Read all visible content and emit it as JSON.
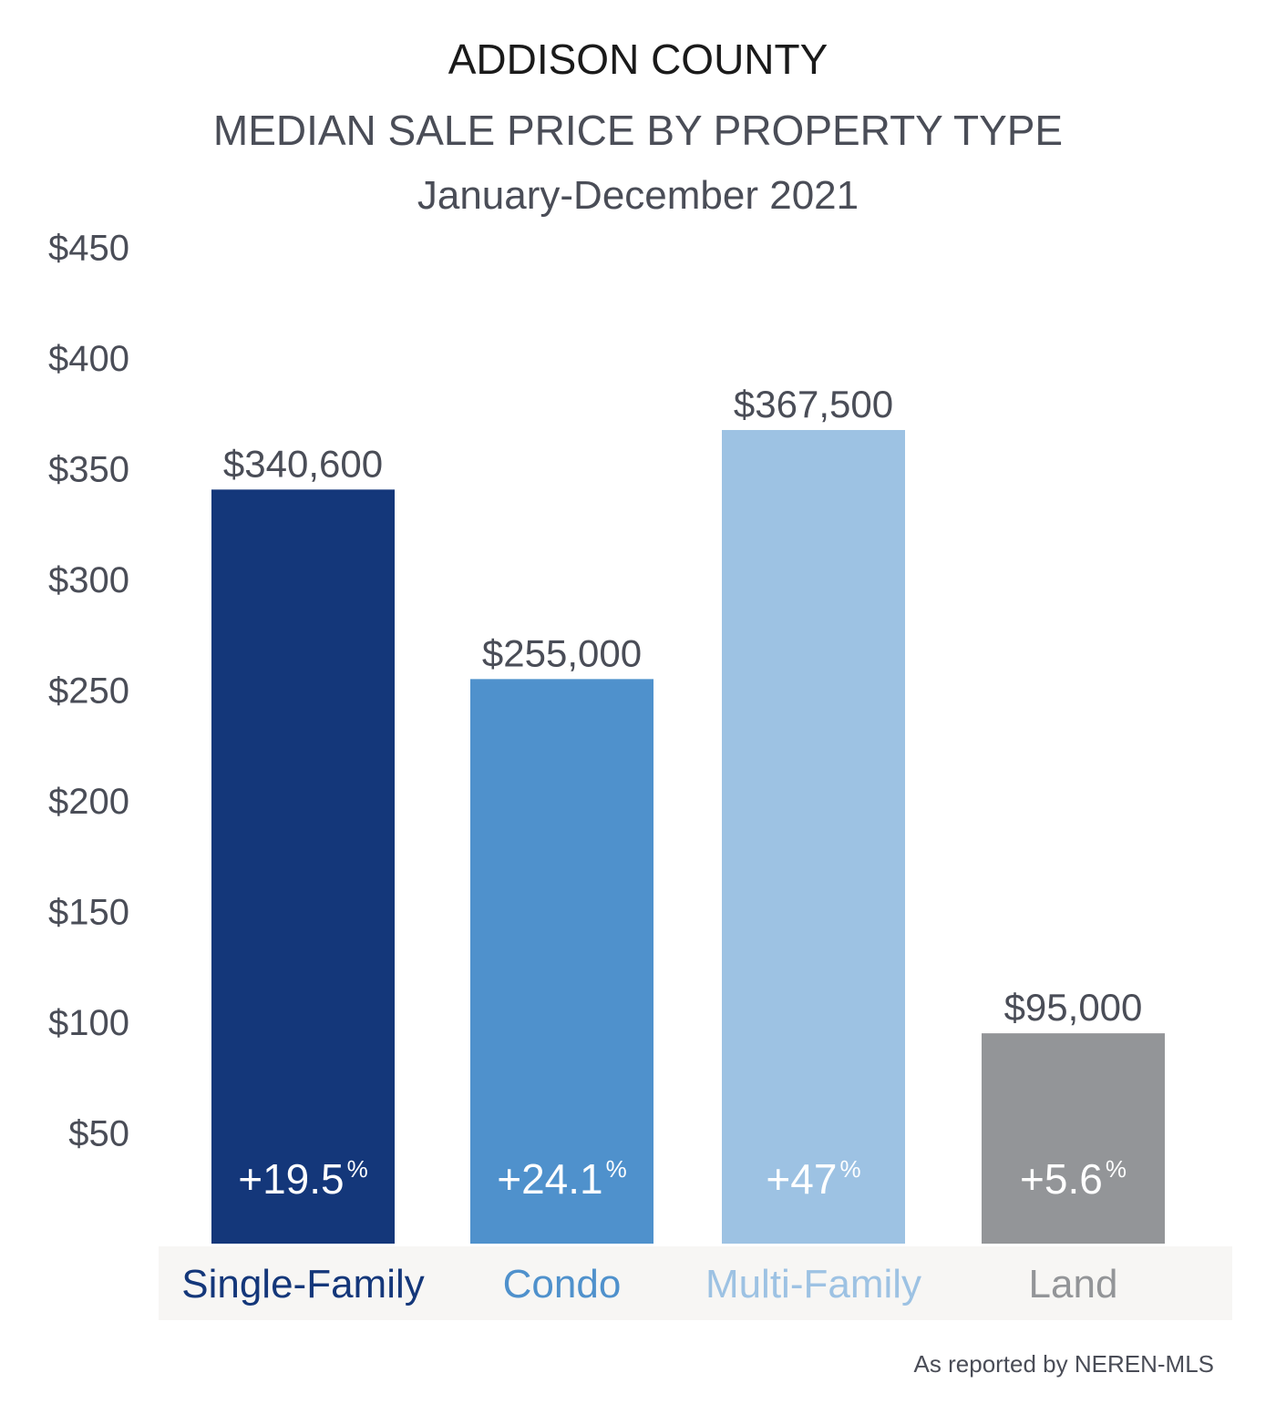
{
  "header": {
    "title": "ADDISON COUNTY",
    "subtitle": "MEDIAN SALE PRICE BY PROPERTY TYPE",
    "period": "January-December 2021"
  },
  "footer": {
    "source": "As reported by NEREN-MLS"
  },
  "chart_data": {
    "type": "bar",
    "title": "MEDIAN SALE PRICE BY PROPERTY TYPE",
    "categories": [
      "Single-Family",
      "Condo",
      "Multi-Family",
      "Land"
    ],
    "values": [
      340.6,
      255.0,
      367.5,
      95.0
    ],
    "value_labels": [
      "$340,600",
      "$255,000",
      "$367,500",
      "$95,000"
    ],
    "change_labels": [
      "+19.5",
      "+24.1",
      "+47",
      "+5.6"
    ],
    "change_unit": "%",
    "colors": [
      "#14377a",
      "#4f91cc",
      "#9dc2e3",
      "#939598"
    ],
    "category_label_colors": [
      "#14377a",
      "#4f91cc",
      "#9dc2e3",
      "#939598"
    ],
    "yticks": [
      50,
      100,
      150,
      200,
      250,
      300,
      350,
      400,
      450
    ],
    "ytick_labels": [
      "$50",
      "$100",
      "$150",
      "$200",
      "$250",
      "$300",
      "$350",
      "$400",
      "$450"
    ],
    "ylim": [
      0,
      450
    ],
    "xlabel": "",
    "ylabel": "",
    "grid": false,
    "legend": "none",
    "category_band_color": "#f7f6f4",
    "label_color": "#4a4d57"
  }
}
